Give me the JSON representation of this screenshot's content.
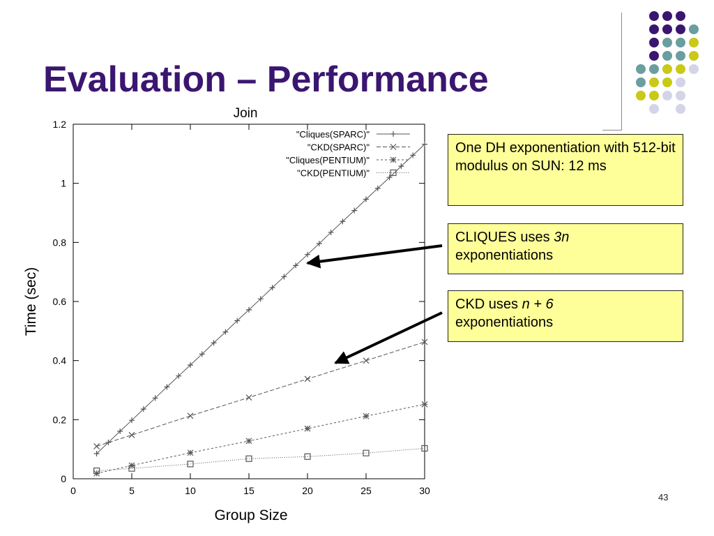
{
  "slide": {
    "title": "Evaluation – Performance",
    "page_number": "43",
    "dot_colors": {
      "purple": "#3b1670",
      "teal": "#6a9ea0",
      "yellow": "#c9c917",
      "lavender": "#d4d4e8"
    }
  },
  "callouts": [
    {
      "text": "One DH exponentiation with 512-bit modulus on SUN:  12 ms"
    },
    {
      "text_prefix": "CLIQUES uses ",
      "text_italic": "3n",
      "text_suffix": "exponentiations"
    },
    {
      "text_prefix": "CKD uses ",
      "text_italic": "n + 6",
      "text_suffix": "exponentiations"
    }
  ],
  "chart_data": {
    "type": "line",
    "title": "Join",
    "xlabel": "Group Size",
    "ylabel": "Time (sec)",
    "xlim": [
      0,
      30
    ],
    "ylim": [
      0,
      1.2
    ],
    "x_ticks": [
      0,
      5,
      10,
      15,
      20,
      25,
      30
    ],
    "y_ticks": [
      0,
      0.2,
      0.4,
      0.6,
      0.8,
      1,
      1.2
    ],
    "y_tick_labels": [
      "0",
      "0.2",
      "0.4",
      "0.6",
      "0.8",
      "1",
      "1.2"
    ],
    "grid": false,
    "legend_position": "top-right",
    "series": [
      {
        "name": "\"Cliques(SPARC)\"",
        "marker": "plus",
        "dash": "",
        "color": "#555555",
        "x": [
          2,
          3,
          4,
          5,
          6,
          7,
          8,
          9,
          10,
          11,
          12,
          13,
          14,
          15,
          16,
          17,
          18,
          19,
          20,
          21,
          22,
          23,
          24,
          25,
          26,
          27,
          28,
          29,
          30
        ],
        "y": [
          0.085,
          0.123,
          0.161,
          0.198,
          0.236,
          0.273,
          0.311,
          0.348,
          0.385,
          0.422,
          0.46,
          0.497,
          0.535,
          0.572,
          0.609,
          0.647,
          0.684,
          0.722,
          0.759,
          0.796,
          0.834,
          0.871,
          0.908,
          0.946,
          0.983,
          1.02,
          1.058,
          1.095,
          1.132
        ]
      },
      {
        "name": "\"CKD(SPARC)\"",
        "marker": "x",
        "dash": "6,3",
        "color": "#555555",
        "x": [
          2,
          5,
          10,
          15,
          20,
          25,
          30
        ],
        "y": [
          0.11,
          0.148,
          0.213,
          0.275,
          0.338,
          0.4,
          0.463
        ]
      },
      {
        "name": "\"Cliques(PENTIUM)\"",
        "marker": "star",
        "dash": "3,3",
        "color": "#555555",
        "x": [
          2,
          5,
          10,
          15,
          20,
          25,
          30
        ],
        "y": [
          0.018,
          0.045,
          0.088,
          0.128,
          0.17,
          0.212,
          0.252
        ]
      },
      {
        "name": "\"CKD(PENTIUM)\"",
        "marker": "square",
        "dash": "1,2",
        "color": "#555555",
        "x": [
          2,
          5,
          10,
          15,
          20,
          25,
          30
        ],
        "y": [
          0.027,
          0.035,
          0.05,
          0.068,
          0.075,
          0.087,
          0.103
        ]
      }
    ]
  }
}
